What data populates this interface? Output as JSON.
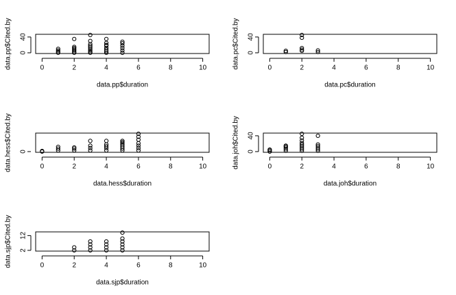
{
  "chart_data": [
    {
      "type": "scatter",
      "xlabel": "data.pp$duration",
      "ylabel": "data.pp$Cited.by",
      "x": [
        1,
        1,
        1,
        1,
        2,
        2,
        2,
        2,
        2,
        2,
        2,
        3,
        3,
        3,
        3,
        3,
        3,
        3,
        3,
        3,
        4,
        4,
        4,
        4,
        4,
        4,
        4,
        4,
        5,
        5,
        5,
        5,
        5,
        5
      ],
      "y": [
        0,
        3,
        6,
        10,
        0,
        3,
        6,
        9,
        12,
        15,
        35,
        0,
        3,
        6,
        10,
        14,
        18,
        22,
        30,
        45,
        0,
        4,
        8,
        12,
        18,
        20,
        25,
        35,
        0,
        6,
        12,
        18,
        24,
        28
      ],
      "xlim": [
        -0.4,
        10.4
      ],
      "xticks": [
        0,
        2,
        4,
        6,
        8,
        10
      ],
      "ylim": [
        -1.8,
        46.8
      ],
      "yticks": [
        0,
        40
      ]
    },
    {
      "type": "scatter",
      "xlabel": "data.pc$duration",
      "ylabel": "data.pc$Cited.by",
      "x": [
        1,
        1,
        2,
        2,
        2,
        2,
        2,
        3,
        3
      ],
      "y": [
        2,
        5,
        5,
        8,
        12,
        38,
        45,
        2,
        6
      ],
      "xlim": [
        -0.4,
        10.4
      ],
      "xticks": [
        0,
        2,
        4,
        6,
        8,
        10
      ],
      "ylim": [
        -1.8,
        46.8
      ],
      "yticks": [
        0,
        40
      ]
    },
    {
      "type": "scatter",
      "xlabel": "data.hess$duration",
      "ylabel": "data.hess$Cited.by",
      "x": [
        0,
        0,
        1,
        1,
        1,
        2,
        2,
        2,
        3,
        3,
        3,
        3,
        4,
        4,
        4,
        4,
        4,
        5,
        5,
        5,
        5,
        5,
        5,
        5,
        6,
        6,
        6,
        6,
        6,
        6,
        6
      ],
      "y": [
        0,
        1,
        2,
        5,
        8,
        2,
        5,
        7,
        2,
        6,
        10,
        18,
        2,
        6,
        9,
        12,
        18,
        2,
        5,
        8,
        11,
        14,
        16,
        18,
        2,
        6,
        10,
        14,
        20,
        25,
        30
      ],
      "xlim": [
        -0.4,
        10.4
      ],
      "xticks": [
        0,
        2,
        4,
        6,
        8,
        10
      ],
      "ylim": [
        -1.2,
        31.2
      ],
      "yticks": [
        0
      ]
    },
    {
      "type": "scatter",
      "xlabel": "data.joh$duration",
      "ylabel": "data.joh$Cited.by",
      "x": [
        0,
        0,
        0,
        1,
        1,
        1,
        1,
        1,
        2,
        2,
        2,
        2,
        2,
        2,
        2,
        2,
        2,
        3,
        3,
        3,
        3,
        3,
        3
      ],
      "y": [
        0,
        3,
        5,
        2,
        6,
        10,
        13,
        15,
        2,
        6,
        10,
        14,
        18,
        22,
        28,
        35,
        45,
        2,
        6,
        10,
        14,
        18,
        40
      ],
      "xlim": [
        -0.4,
        10.4
      ],
      "xticks": [
        0,
        2,
        4,
        6,
        8,
        10
      ],
      "ylim": [
        -1.8,
        46.8
      ],
      "yticks": [
        0,
        40
      ]
    },
    {
      "type": "scatter",
      "xlabel": "data.sjp$duration",
      "ylabel": "data.sjp$Cited.by",
      "x": [
        2,
        2,
        3,
        3,
        3,
        3,
        4,
        4,
        4,
        4,
        5,
        5,
        5,
        5,
        5,
        5
      ],
      "y": [
        2,
        4,
        2,
        4,
        6,
        8,
        2,
        4,
        6,
        8,
        2,
        4,
        6,
        8,
        10,
        14
      ],
      "xlim": [
        -0.4,
        10.4
      ],
      "xticks": [
        0,
        2,
        4,
        6,
        8,
        10
      ],
      "ylim": [
        1.5,
        14.5
      ],
      "yticks": [
        2,
        12
      ]
    }
  ]
}
